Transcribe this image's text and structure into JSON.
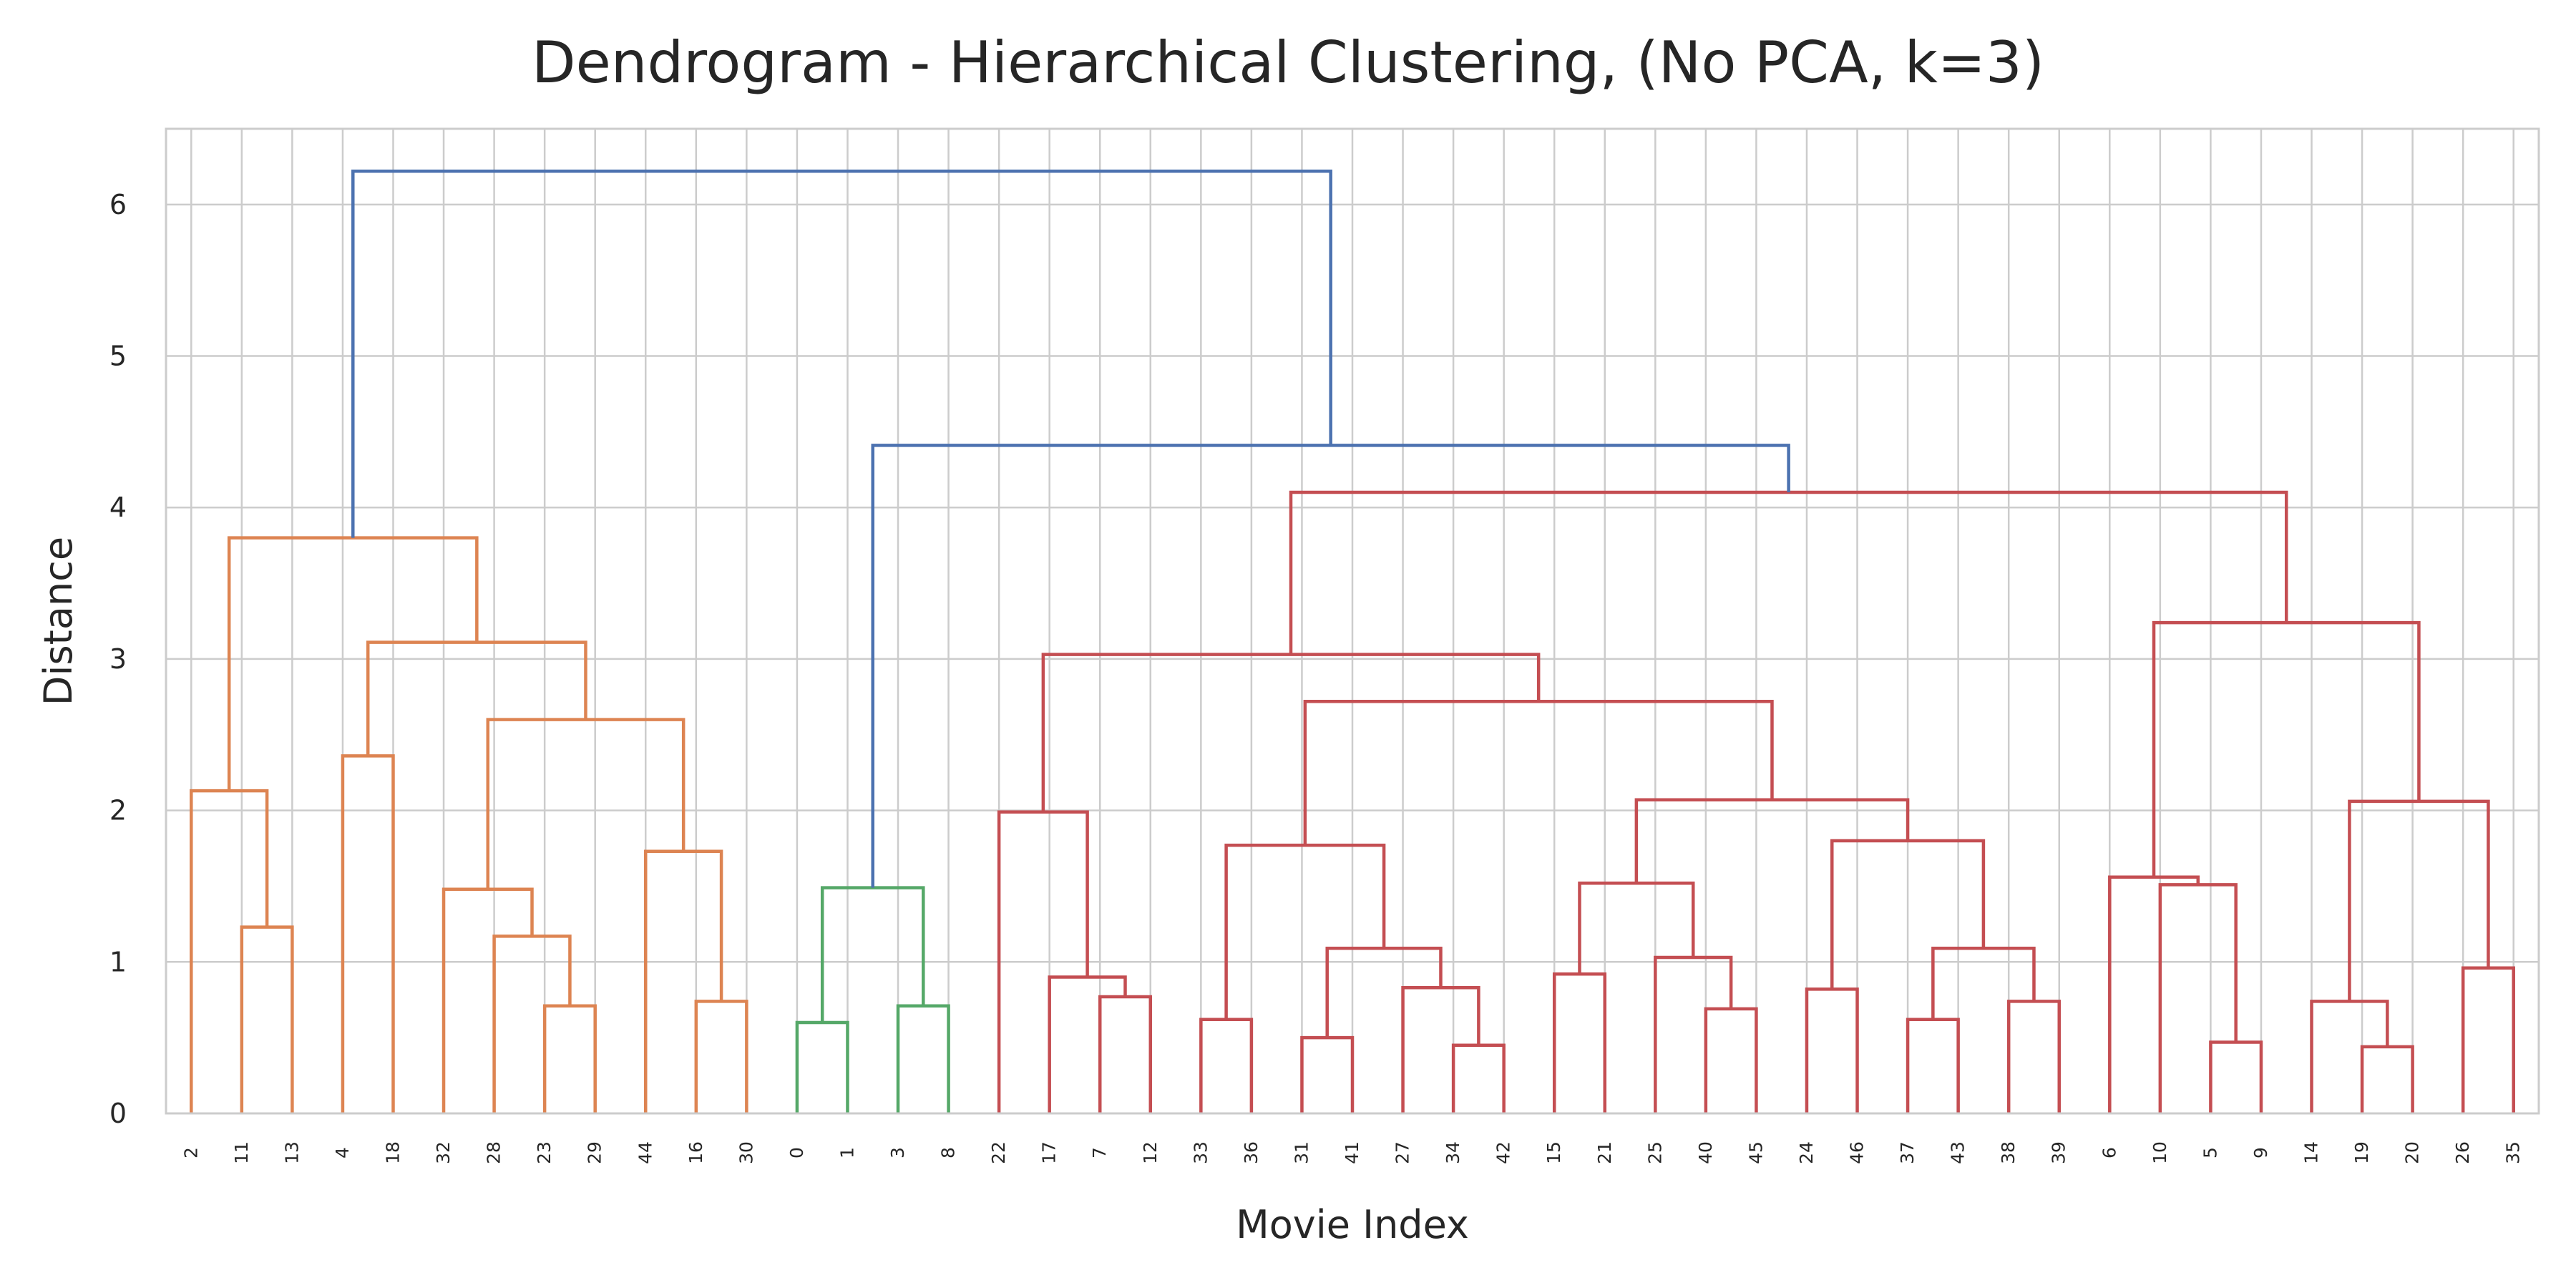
{
  "chart_data": {
    "type": "dendrogram",
    "title": "Dendrogram - Hierarchical Clustering, (No PCA, k=3)",
    "xlabel": "Movie Index",
    "ylabel": "Distance",
    "ylim": [
      0,
      6.5
    ],
    "yticks": [
      "0",
      "1",
      "2",
      "3",
      "4",
      "5",
      "6"
    ],
    "grid": true,
    "leaf_order": [
      "2",
      "11",
      "13",
      "4",
      "18",
      "32",
      "28",
      "23",
      "29",
      "44",
      "16",
      "30",
      "0",
      "1",
      "3",
      "8",
      "22",
      "17",
      "7",
      "12",
      "33",
      "36",
      "31",
      "41",
      "27",
      "34",
      "42",
      "15",
      "21",
      "25",
      "40",
      "45",
      "24",
      "46",
      "37",
      "43",
      "38",
      "39",
      "6",
      "10",
      "5",
      "9",
      "14",
      "19",
      "20",
      "26",
      "35"
    ],
    "cluster_colors": {
      "orange": "#dd8452",
      "green": "#55a868",
      "red": "#c44e52",
      "link_above_threshold": "#4c72b0"
    },
    "merges": [
      {
        "left": [
          "11"
        ],
        "right": [
          "13"
        ],
        "distance": 1.23,
        "color": "#dd8452"
      },
      {
        "left": [
          "2"
        ],
        "right": [
          "11",
          "13"
        ],
        "distance": 2.13,
        "color": "#dd8452"
      },
      {
        "left": [
          "4"
        ],
        "right": [
          "18"
        ],
        "distance": 2.36,
        "color": "#dd8452"
      },
      {
        "left": [
          "23"
        ],
        "right": [
          "29"
        ],
        "distance": 0.71,
        "color": "#dd8452"
      },
      {
        "left": [
          "28"
        ],
        "right": [
          "23",
          "29"
        ],
        "distance": 1.17,
        "color": "#dd8452"
      },
      {
        "left": [
          "32"
        ],
        "right": [
          "28",
          "23",
          "29"
        ],
        "distance": 1.48,
        "color": "#dd8452"
      },
      {
        "left": [
          "16"
        ],
        "right": [
          "30"
        ],
        "distance": 0.74,
        "color": "#dd8452"
      },
      {
        "left": [
          "44"
        ],
        "right": [
          "16",
          "30"
        ],
        "distance": 1.73,
        "color": "#dd8452"
      },
      {
        "left": [
          "32",
          "28",
          "23",
          "29"
        ],
        "right": [
          "44",
          "16",
          "30"
        ],
        "distance": 2.6,
        "color": "#dd8452"
      },
      {
        "left": [
          "4",
          "18"
        ],
        "right": [
          "32",
          "28",
          "23",
          "29",
          "44",
          "16",
          "30"
        ],
        "distance": 3.11,
        "color": "#dd8452"
      },
      {
        "left": [
          "2",
          "11",
          "13"
        ],
        "right": [
          "4",
          "18",
          "32",
          "28",
          "23",
          "29",
          "44",
          "16",
          "30"
        ],
        "distance": 3.8,
        "color": "#dd8452"
      },
      {
        "left": [
          "0"
        ],
        "right": [
          "1"
        ],
        "distance": 0.6,
        "color": "#55a868"
      },
      {
        "left": [
          "3"
        ],
        "right": [
          "8"
        ],
        "distance": 0.71,
        "color": "#55a868"
      },
      {
        "left": [
          "0",
          "1"
        ],
        "right": [
          "3",
          "8"
        ],
        "distance": 1.49,
        "color": "#55a868"
      },
      {
        "left": [
          "7"
        ],
        "right": [
          "12"
        ],
        "distance": 0.77,
        "color": "#c44e52"
      },
      {
        "left": [
          "17"
        ],
        "right": [
          "7",
          "12"
        ],
        "distance": 0.9,
        "color": "#c44e52"
      },
      {
        "left": [
          "22"
        ],
        "right": [
          "17",
          "7",
          "12"
        ],
        "distance": 1.99,
        "color": "#c44e52"
      },
      {
        "left": [
          "33"
        ],
        "right": [
          "36"
        ],
        "distance": 0.62,
        "color": "#c44e52"
      },
      {
        "left": [
          "31"
        ],
        "right": [
          "41"
        ],
        "distance": 0.5,
        "color": "#c44e52"
      },
      {
        "left": [
          "34"
        ],
        "right": [
          "42"
        ],
        "distance": 0.45,
        "color": "#c44e52"
      },
      {
        "left": [
          "27"
        ],
        "right": [
          "34",
          "42"
        ],
        "distance": 0.83,
        "color": "#c44e52"
      },
      {
        "left": [
          "31",
          "41"
        ],
        "right": [
          "27",
          "34",
          "42"
        ],
        "distance": 1.09,
        "color": "#c44e52"
      },
      {
        "left": [
          "33",
          "36"
        ],
        "right": [
          "31",
          "41",
          "27",
          "34",
          "42"
        ],
        "distance": 1.77,
        "color": "#c44e52"
      },
      {
        "left": [
          "15"
        ],
        "right": [
          "21"
        ],
        "distance": 0.92,
        "color": "#c44e52"
      },
      {
        "left": [
          "40"
        ],
        "right": [
          "45"
        ],
        "distance": 0.69,
        "color": "#c44e52"
      },
      {
        "left": [
          "25"
        ],
        "right": [
          "40",
          "45"
        ],
        "distance": 1.03,
        "color": "#c44e52"
      },
      {
        "left": [
          "15",
          "21"
        ],
        "right": [
          "25",
          "40",
          "45"
        ],
        "distance": 1.52,
        "color": "#c44e52"
      },
      {
        "left": [
          "24"
        ],
        "right": [
          "46"
        ],
        "distance": 0.82,
        "color": "#c44e52"
      },
      {
        "left": [
          "37"
        ],
        "right": [
          "43"
        ],
        "distance": 0.62,
        "color": "#c44e52"
      },
      {
        "left": [
          "38"
        ],
        "right": [
          "39"
        ],
        "distance": 0.74,
        "color": "#c44e52"
      },
      {
        "left": [
          "37",
          "43"
        ],
        "right": [
          "38",
          "39"
        ],
        "distance": 1.09,
        "color": "#c44e52"
      },
      {
        "left": [
          "24",
          "46"
        ],
        "right": [
          "37",
          "43",
          "38",
          "39"
        ],
        "distance": 1.8,
        "color": "#c44e52"
      },
      {
        "left": [
          "15",
          "21",
          "25",
          "40",
          "45"
        ],
        "right": [
          "24",
          "46",
          "37",
          "43",
          "38",
          "39"
        ],
        "distance": 2.07,
        "color": "#c44e52"
      },
      {
        "left": [
          "33",
          "36",
          "31",
          "41",
          "27",
          "34",
          "42"
        ],
        "right": [
          "15",
          "21",
          "25",
          "40",
          "45",
          "24",
          "46",
          "37",
          "43",
          "38",
          "39"
        ],
        "distance": 2.72,
        "color": "#c44e52"
      },
      {
        "left": [
          "22",
          "17",
          "7",
          "12"
        ],
        "right": [
          "33",
          "36",
          "31",
          "41",
          "27",
          "34",
          "42",
          "15",
          "21",
          "25",
          "40",
          "45",
          "24",
          "46",
          "37",
          "43",
          "38",
          "39"
        ],
        "distance": 3.03,
        "color": "#c44e52"
      },
      {
        "left": [
          "5"
        ],
        "right": [
          "9"
        ],
        "distance": 0.47,
        "color": "#c44e52"
      },
      {
        "left": [
          "10"
        ],
        "right": [
          "5",
          "9"
        ],
        "distance": 1.51,
        "color": "#c44e52"
      },
      {
        "left": [
          "6"
        ],
        "right": [
          "10",
          "5",
          "9"
        ],
        "distance": 1.56,
        "color": "#c44e52"
      },
      {
        "left": [
          "19"
        ],
        "right": [
          "20"
        ],
        "distance": 0.44,
        "color": "#c44e52"
      },
      {
        "left": [
          "14"
        ],
        "right": [
          "19",
          "20"
        ],
        "distance": 0.74,
        "color": "#c44e52"
      },
      {
        "left": [
          "26"
        ],
        "right": [
          "35"
        ],
        "distance": 0.96,
        "color": "#c44e52"
      },
      {
        "left": [
          "14",
          "19",
          "20"
        ],
        "right": [
          "26",
          "35"
        ],
        "distance": 2.06,
        "color": "#c44e52"
      },
      {
        "left": [
          "6",
          "10",
          "5",
          "9"
        ],
        "right": [
          "14",
          "19",
          "20",
          "26",
          "35"
        ],
        "distance": 3.24,
        "color": "#c44e52"
      },
      {
        "left": [
          "22",
          "17",
          "7",
          "12",
          "33",
          "36",
          "31",
          "41",
          "27",
          "34",
          "42",
          "15",
          "21",
          "25",
          "40",
          "45",
          "24",
          "46",
          "37",
          "43",
          "38",
          "39"
        ],
        "right": [
          "6",
          "10",
          "5",
          "9",
          "14",
          "19",
          "20",
          "26",
          "35"
        ],
        "distance": 4.1,
        "color": "#c44e52"
      },
      {
        "left": [
          "0",
          "1",
          "3",
          "8"
        ],
        "right": [
          "22",
          "17",
          "7",
          "12",
          "33",
          "36",
          "31",
          "41",
          "27",
          "34",
          "42",
          "15",
          "21",
          "25",
          "40",
          "45",
          "24",
          "46",
          "37",
          "43",
          "38",
          "39",
          "6",
          "10",
          "5",
          "9",
          "14",
          "19",
          "20",
          "26",
          "35"
        ],
        "distance": 4.41,
        "color": "#4c72b0"
      },
      {
        "left": [
          "2",
          "11",
          "13",
          "4",
          "18",
          "32",
          "28",
          "23",
          "29",
          "44",
          "16",
          "30"
        ],
        "right": [
          "0",
          "1",
          "3",
          "8",
          "22",
          "17",
          "7",
          "12",
          "33",
          "36",
          "31",
          "41",
          "27",
          "34",
          "42",
          "15",
          "21",
          "25",
          "40",
          "45",
          "24",
          "46",
          "37",
          "43",
          "38",
          "39",
          "6",
          "10",
          "5",
          "9",
          "14",
          "19",
          "20",
          "26",
          "35"
        ],
        "distance": 6.22,
        "color": "#4c72b0"
      }
    ]
  }
}
